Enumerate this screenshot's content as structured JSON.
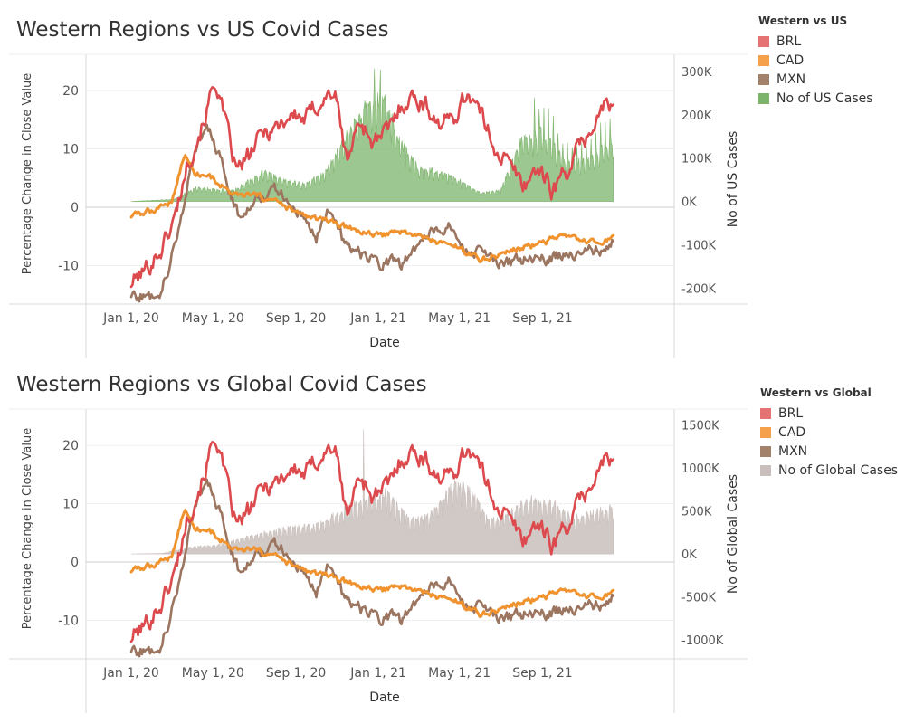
{
  "colors": {
    "BRL": "#d8454a",
    "CAD": "#f09435",
    "MXN": "#9b7a62",
    "US": "#6fb35f",
    "Global": "#c7bcb8"
  },
  "chart_data": [
    {
      "type": "line",
      "title": "Western Regions vs US Covid Cases",
      "xlabel": "Date",
      "ylabel": "Percentage Change in Close Value",
      "y2label": "No of US Cases",
      "x_ticks": [
        "Jan 1, 20",
        "May 1, 20",
        "Sep 1, 20",
        "Jan 1, 21",
        "May 1, 21",
        "Sep 1, 21"
      ],
      "y_ticks": [
        "20",
        "10",
        "0",
        "-10"
      ],
      "y2_ticks": [
        "300K",
        "200K",
        "100K",
        "0K",
        "-100K",
        "-200K"
      ],
      "ylim": [
        -16.6,
        25
      ],
      "y2lim": [
        -237000,
        323000
      ],
      "legend_title": "Western  vs US",
      "legend": [
        "BRL",
        "CAD",
        "MXN",
        "No of US Cases"
      ],
      "legend_position": "right",
      "series": [
        {
          "name": "BRL",
          "x": [
            "2020-01-01",
            "2020-01-20",
            "2020-02-15",
            "2020-03-05",
            "2020-03-25",
            "2020-04-15",
            "2020-05-05",
            "2020-05-20",
            "2020-06-05",
            "2020-06-25",
            "2020-07-15",
            "2020-08-05",
            "2020-08-25",
            "2020-09-15",
            "2020-10-05",
            "2020-10-28",
            "2020-11-15",
            "2020-12-05",
            "2020-12-25",
            "2021-01-15",
            "2021-02-05",
            "2021-02-25",
            "2021-03-15",
            "2021-04-05",
            "2021-04-25",
            "2021-05-15",
            "2021-06-05",
            "2021-06-25",
            "2021-07-15",
            "2021-08-05",
            "2021-08-25",
            "2021-09-15",
            "2021-10-05",
            "2021-10-25",
            "2021-11-15",
            "2021-12-05",
            "2021-12-15"
          ],
          "y": [
            -13,
            -11,
            -7,
            -2,
            8,
            14,
            22,
            14,
            6,
            9,
            13,
            14,
            16,
            15,
            18,
            20,
            8,
            15,
            11,
            13,
            18,
            19,
            17,
            14,
            16,
            20,
            15,
            10,
            7,
            4,
            7,
            3,
            6,
            10,
            14,
            18,
            17
          ]
        },
        {
          "name": "CAD",
          "x": [
            "2020-01-01",
            "2020-02-01",
            "2020-03-01",
            "2020-03-20",
            "2020-04-05",
            "2020-05-01",
            "2020-06-01",
            "2020-07-01",
            "2020-08-01",
            "2020-09-01",
            "2020-10-01",
            "2020-11-01",
            "2020-12-01",
            "2021-01-01",
            "2021-02-01",
            "2021-03-01",
            "2021-04-01",
            "2021-05-01",
            "2021-06-01",
            "2021-07-01",
            "2021-08-01",
            "2021-09-01",
            "2021-10-01",
            "2021-11-01",
            "2021-12-01",
            "2021-12-15"
          ],
          "y": [
            -1.5,
            -0.5,
            1,
            9,
            6,
            5,
            2,
            2,
            1,
            -1,
            -2,
            -3,
            -4,
            -5,
            -4,
            -5,
            -6,
            -7,
            -9,
            -8,
            -7,
            -6,
            -5,
            -6,
            -6,
            -5
          ]
        },
        {
          "name": "MXN",
          "x": [
            "2020-01-01",
            "2020-01-25",
            "2020-02-15",
            "2020-03-10",
            "2020-03-25",
            "2020-04-10",
            "2020-04-25",
            "2020-05-10",
            "2020-05-25",
            "2020-06-10",
            "2020-07-05",
            "2020-08-05",
            "2020-08-25",
            "2020-09-15",
            "2020-10-01",
            "2020-10-20",
            "2020-11-10",
            "2020-12-05",
            "2021-01-01",
            "2021-01-20",
            "2021-02-05",
            "2021-03-01",
            "2021-03-25",
            "2021-04-15",
            "2021-05-05",
            "2021-06-01",
            "2021-07-01",
            "2021-08-01",
            "2021-09-01",
            "2021-10-01",
            "2021-11-01",
            "2021-12-01",
            "2021-12-15"
          ],
          "y": [
            -15,
            -15.5,
            -14,
            -5,
            5,
            12,
            13,
            9,
            3,
            -2,
            2,
            3,
            0,
            -2,
            -5,
            0,
            -6,
            -8,
            -10,
            -9,
            -10,
            -6,
            -4,
            -3,
            -7,
            -8,
            -10,
            -9,
            -9,
            -8,
            -8,
            -7,
            -6
          ]
        },
        {
          "name": "No of US Cases",
          "x": [
            "2020-01-01",
            "2020-03-05",
            "2020-04-05",
            "2020-05-01",
            "2020-06-01",
            "2020-07-15",
            "2020-08-15",
            "2020-09-15",
            "2020-10-15",
            "2020-11-15",
            "2020-12-15",
            "2021-01-10",
            "2021-02-01",
            "2021-03-01",
            "2021-04-01",
            "2021-05-01",
            "2021-06-01",
            "2021-07-01",
            "2021-08-01",
            "2021-09-01",
            "2021-10-01",
            "2021-11-01",
            "2021-12-15"
          ],
          "y": [
            0,
            5000,
            32000,
            28000,
            26000,
            68000,
            48000,
            40000,
            68000,
            150000,
            220000,
            240000,
            140000,
            75000,
            70000,
            48000,
            20000,
            25000,
            145000,
            160000,
            100000,
            90000,
            140000
          ]
        }
      ]
    },
    {
      "type": "line",
      "title": "Western Regions vs Global Covid Cases",
      "xlabel": "Date",
      "ylabel": "Percentage Change in Close Value",
      "y2label": "No of Global Cases",
      "x_ticks": [
        "Jan 1, 20",
        "May 1, 20",
        "Sep 1, 20",
        "Jan 1, 21",
        "May 1, 21",
        "Sep 1, 21"
      ],
      "y_ticks": [
        "20",
        "10",
        "0",
        "-10"
      ],
      "y2_ticks": [
        "1500K",
        "1000K",
        "500K",
        "0K",
        "-500K",
        "-1000K"
      ],
      "ylim": [
        -16.6,
        25
      ],
      "y2lim": [
        -1220000,
        1600000
      ],
      "legend_title": "Western vs Global",
      "legend": [
        "BRL",
        "CAD",
        "MXN",
        "No of Global Cases"
      ],
      "legend_position": "right",
      "series": [
        {
          "name": "BRL",
          "x": [
            "2020-01-01",
            "2020-01-20",
            "2020-02-15",
            "2020-03-05",
            "2020-03-25",
            "2020-04-15",
            "2020-05-05",
            "2020-05-20",
            "2020-06-05",
            "2020-06-25",
            "2020-07-15",
            "2020-08-05",
            "2020-08-25",
            "2020-09-15",
            "2020-10-05",
            "2020-10-28",
            "2020-11-15",
            "2020-12-05",
            "2020-12-25",
            "2021-01-15",
            "2021-02-05",
            "2021-02-25",
            "2021-03-15",
            "2021-04-05",
            "2021-04-25",
            "2021-05-15",
            "2021-06-05",
            "2021-06-25",
            "2021-07-15",
            "2021-08-05",
            "2021-08-25",
            "2021-09-15",
            "2021-10-05",
            "2021-10-25",
            "2021-11-15",
            "2021-12-05",
            "2021-12-15"
          ],
          "y": [
            -13,
            -11,
            -7,
            -2,
            8,
            14,
            22,
            14,
            6,
            9,
            13,
            14,
            16,
            15,
            18,
            20,
            8,
            15,
            11,
            13,
            18,
            19,
            17,
            14,
            16,
            20,
            15,
            10,
            7,
            4,
            7,
            3,
            6,
            10,
            14,
            18,
            17
          ]
        },
        {
          "name": "CAD",
          "x": [
            "2020-01-01",
            "2020-02-01",
            "2020-03-01",
            "2020-03-20",
            "2020-04-05",
            "2020-05-01",
            "2020-06-01",
            "2020-07-01",
            "2020-08-01",
            "2020-09-01",
            "2020-10-01",
            "2020-11-01",
            "2020-12-01",
            "2021-01-01",
            "2021-02-01",
            "2021-03-01",
            "2021-04-01",
            "2021-05-01",
            "2021-06-01",
            "2021-07-01",
            "2021-08-01",
            "2021-09-01",
            "2021-10-01",
            "2021-11-01",
            "2021-12-01",
            "2021-12-15"
          ],
          "y": [
            -1.5,
            -0.5,
            1,
            9,
            6,
            5,
            2,
            2,
            1,
            -1,
            -2,
            -3,
            -4,
            -5,
            -4,
            -5,
            -6,
            -7,
            -9,
            -8,
            -7,
            -6,
            -5,
            -6,
            -6,
            -5
          ]
        },
        {
          "name": "MXN",
          "x": [
            "2020-01-01",
            "2020-01-25",
            "2020-02-15",
            "2020-03-10",
            "2020-03-25",
            "2020-04-10",
            "2020-04-25",
            "2020-05-10",
            "2020-05-25",
            "2020-06-10",
            "2020-07-05",
            "2020-08-05",
            "2020-08-25",
            "2020-09-15",
            "2020-10-01",
            "2020-10-20",
            "2020-11-10",
            "2020-12-05",
            "2021-01-01",
            "2021-01-20",
            "2021-02-05",
            "2021-03-01",
            "2021-03-25",
            "2021-04-15",
            "2021-05-05",
            "2021-06-01",
            "2021-07-01",
            "2021-08-01",
            "2021-09-01",
            "2021-10-01",
            "2021-11-01",
            "2021-12-01",
            "2021-12-15"
          ],
          "y": [
            -15,
            -15.5,
            -14,
            -5,
            5,
            12,
            13,
            9,
            3,
            -2,
            2,
            3,
            0,
            -2,
            -5,
            0,
            -6,
            -8,
            -10,
            -9,
            -10,
            -6,
            -4,
            -3,
            -7,
            -8,
            -10,
            -9,
            -9,
            -8,
            -8,
            -7,
            -6
          ]
        },
        {
          "name": "No of Global Cases",
          "x": [
            "2020-01-01",
            "2020-02-15",
            "2020-04-01",
            "2020-05-15",
            "2020-07-01",
            "2020-08-15",
            "2020-10-01",
            "2020-11-15",
            "2020-12-15",
            "2021-01-10",
            "2021-02-15",
            "2021-03-15",
            "2021-04-25",
            "2021-05-15",
            "2021-06-15",
            "2021-07-15",
            "2021-08-15",
            "2021-09-15",
            "2021-10-15",
            "2021-11-15",
            "2021-12-15"
          ],
          "y": [
            0,
            5000,
            80000,
            110000,
            220000,
            290000,
            330000,
            540000,
            620000,
            720000,
            400000,
            430000,
            820000,
            740000,
            380000,
            480000,
            640000,
            600000,
            420000,
            480000,
            540000
          ]
        }
      ]
    }
  ]
}
